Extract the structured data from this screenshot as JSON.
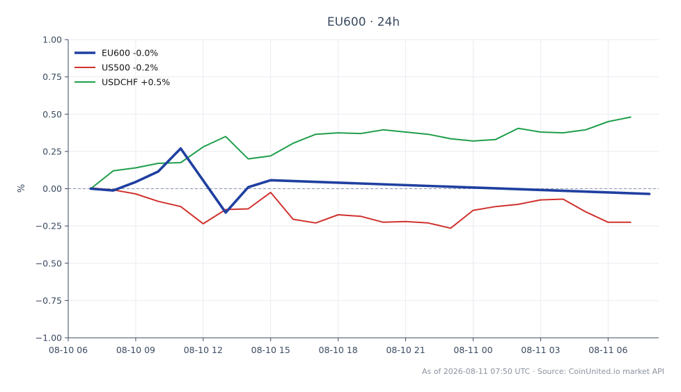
{
  "chart_data": {
    "type": "line",
    "title": "EU600 · 24h",
    "xlabel": "",
    "ylabel": "%",
    "ylim": [
      -1.0,
      1.0
    ],
    "xlim": [
      "2026-08-10 06:00",
      "2026-08-11 08:15"
    ],
    "grid": true,
    "legend_position": "top-left",
    "zero_line": {
      "value": 0.0,
      "style": "dashed",
      "color": "#8a94b0"
    },
    "x_tick_labels": [
      "08-10 06",
      "08-10 09",
      "08-10 12",
      "08-10 15",
      "08-10 18",
      "08-10 21",
      "08-11 00",
      "08-11 03",
      "08-11 06"
    ],
    "x_ticks": [
      "2026-08-10 06:00",
      "2026-08-10 09:00",
      "2026-08-10 12:00",
      "2026-08-10 15:00",
      "2026-08-10 18:00",
      "2026-08-10 21:00",
      "2026-08-11 00:00",
      "2026-08-11 03:00",
      "2026-08-11 06:00"
    ],
    "y_tick_labels": [
      "1.00",
      "0.75",
      "0.50",
      "0.25",
      "0.00",
      "−0.25",
      "−0.50",
      "−0.75",
      "−1.00"
    ],
    "y_ticks": [
      1.0,
      0.75,
      0.5,
      0.25,
      0.0,
      -0.25,
      -0.5,
      -0.75,
      -1.0
    ],
    "series": [
      {
        "name": "EU600 -0.0%",
        "color": "#1f3fa0",
        "width": "thick",
        "x": [
          "2026-08-10 07:00",
          "2026-08-10 08:00",
          "2026-08-10 09:00",
          "2026-08-10 10:00",
          "2026-08-10 11:00",
          "2026-08-10 12:00",
          "2026-08-10 13:00",
          "2026-08-10 14:00",
          "2026-08-10 15:00",
          "2026-08-11 07:50"
        ],
        "y": [
          0.0,
          -0.012,
          0.045,
          0.115,
          0.27,
          0.055,
          -0.16,
          0.01,
          0.057,
          -0.035
        ]
      },
      {
        "name": "US500 -0.2%",
        "color": "#d0312d",
        "width": "normal",
        "x": [
          "2026-08-10 07:00",
          "2026-08-10 08:00",
          "2026-08-10 09:00",
          "2026-08-10 10:00",
          "2026-08-10 11:00",
          "2026-08-10 12:00",
          "2026-08-10 13:00",
          "2026-08-10 14:00",
          "2026-08-10 15:00",
          "2026-08-10 16:00",
          "2026-08-10 17:00",
          "2026-08-10 18:00",
          "2026-08-10 19:00",
          "2026-08-10 20:00",
          "2026-08-10 21:00",
          "2026-08-10 22:00",
          "2026-08-10 23:00",
          "2026-08-11 00:00",
          "2026-08-11 01:00",
          "2026-08-11 02:00",
          "2026-08-11 03:00",
          "2026-08-11 04:00",
          "2026-08-11 05:00",
          "2026-08-11 06:00",
          "2026-08-11 07:00"
        ],
        "y": [
          0.005,
          -0.008,
          -0.035,
          -0.085,
          -0.12,
          -0.235,
          -0.14,
          -0.135,
          -0.025,
          -0.205,
          -0.23,
          -0.175,
          -0.185,
          -0.225,
          -0.22,
          -0.23,
          -0.265,
          -0.145,
          -0.12,
          -0.105,
          -0.075,
          -0.07,
          -0.155,
          -0.225,
          -0.225
        ]
      },
      {
        "name": "USDCHF +0.5%",
        "color": "#1e9e4a",
        "width": "normal",
        "x": [
          "2026-08-10 07:00",
          "2026-08-10 08:00",
          "2026-08-10 09:00",
          "2026-08-10 10:00",
          "2026-08-10 11:00",
          "2026-08-10 12:00",
          "2026-08-10 13:00",
          "2026-08-10 14:00",
          "2026-08-10 15:00",
          "2026-08-10 16:00",
          "2026-08-10 17:00",
          "2026-08-10 18:00",
          "2026-08-10 19:00",
          "2026-08-10 20:00",
          "2026-08-10 21:00",
          "2026-08-10 22:00",
          "2026-08-10 23:00",
          "2026-08-11 00:00",
          "2026-08-11 01:00",
          "2026-08-11 02:00",
          "2026-08-11 03:00",
          "2026-08-11 04:00",
          "2026-08-11 05:00",
          "2026-08-11 06:00",
          "2026-08-11 07:00"
        ],
        "y": [
          0.0,
          0.12,
          0.14,
          0.17,
          0.175,
          0.28,
          0.35,
          0.2,
          0.22,
          0.305,
          0.365,
          0.375,
          0.37,
          0.395,
          0.38,
          0.365,
          0.335,
          0.32,
          0.33,
          0.405,
          0.38,
          0.375,
          0.395,
          0.45,
          0.48
        ]
      }
    ]
  },
  "footer": {
    "note": "As of 2026-08-11 07:50 UTC · Source: CoinUnited.io market API"
  }
}
